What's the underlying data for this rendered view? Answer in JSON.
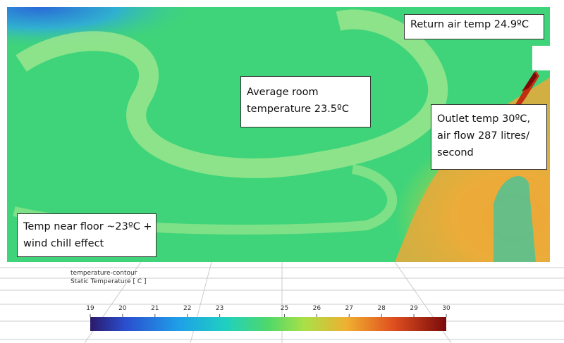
{
  "annotations": {
    "return_air": {
      "lines": [
        "Return air temp 24.9ºC"
      ]
    },
    "average_room": {
      "lines": [
        "Average room",
        "temperature 23.5ºC"
      ]
    },
    "outlet": {
      "lines": [
        "Outlet temp 30ºC,",
        "air flow 287 litres/",
        "second"
      ]
    },
    "floor": {
      "lines": [
        "Temp near floor ~23ºC +",
        "wind chill effect"
      ]
    }
  },
  "colorbar": {
    "title": "temperature-contour",
    "subtitle": "Static Temperature [ C ]",
    "range": [
      19,
      30
    ],
    "ticks": [
      19,
      20,
      21,
      22,
      23,
      25,
      26,
      27,
      28,
      29,
      30
    ]
  }
}
